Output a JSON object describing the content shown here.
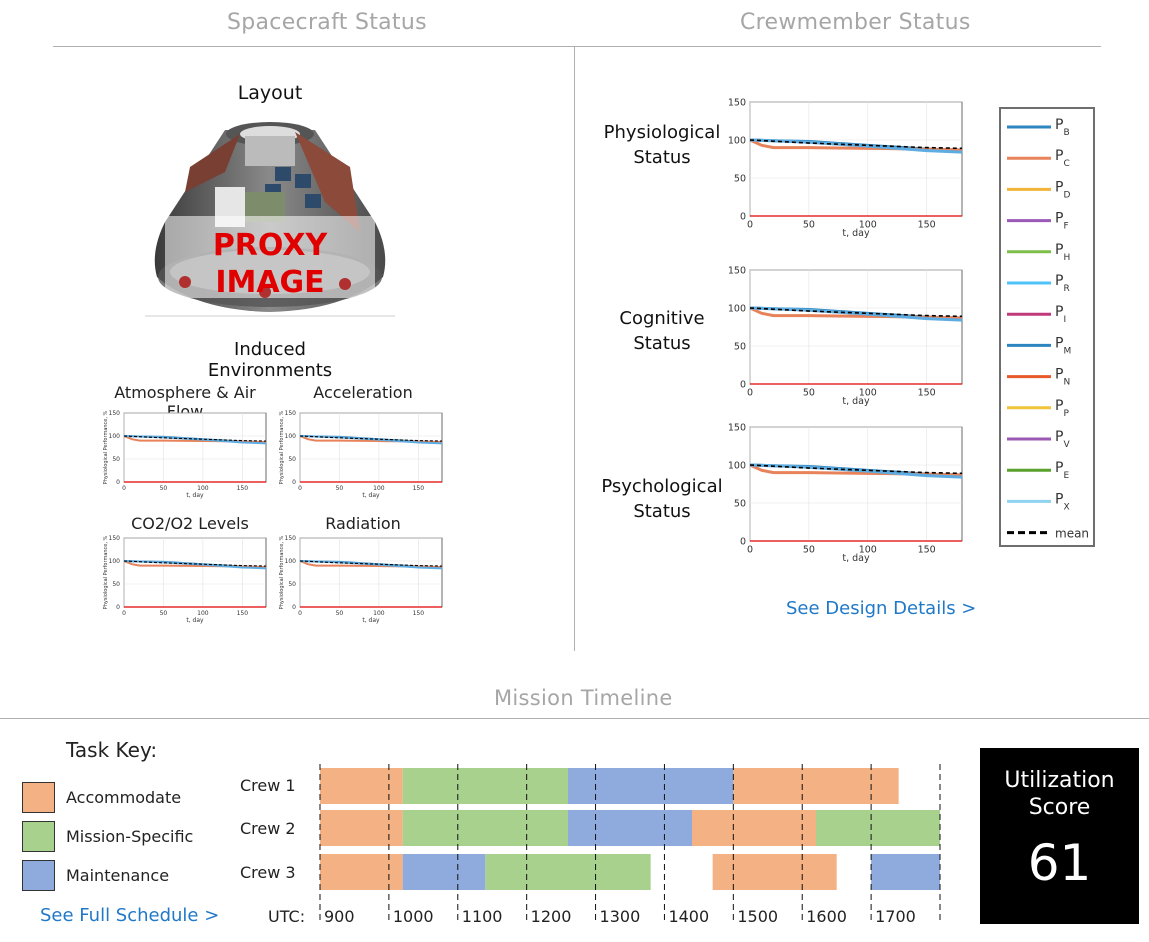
{
  "sections": {
    "spacecraft": "Spacecraft Status",
    "crew": "Crewmember Status",
    "timeline": "Mission Timeline"
  },
  "layout": {
    "title": "Layout",
    "proxy_line1": "PROXY",
    "proxy_line2": "IMAGE"
  },
  "induced": {
    "title": "Induced Environments",
    "panels": [
      {
        "title": "Atmosphere & Air Flow"
      },
      {
        "title": "Acceleration"
      },
      {
        "title": "CO2/O2 Levels"
      },
      {
        "title": "Radiation"
      }
    ],
    "ylabel": "Physiological Performance, %",
    "xlabel": "t, day"
  },
  "crew_status": {
    "labels": [
      {
        "line1": "Physiological",
        "line2": "Status"
      },
      {
        "line1": "Cognitive",
        "line2": "Status"
      },
      {
        "line1": "Psychological",
        "line2": "Status"
      }
    ],
    "xlabel": "t, day",
    "link": "See Design Details  >"
  },
  "legend": [
    {
      "name": "P",
      "sub": "B",
      "color": "#2e86c1"
    },
    {
      "name": "P",
      "sub": "C",
      "color": "#e8825a"
    },
    {
      "name": "P",
      "sub": "D",
      "color": "#f0b43a"
    },
    {
      "name": "P",
      "sub": "F",
      "color": "#9b59b6"
    },
    {
      "name": "P",
      "sub": "H",
      "color": "#7dbf4a"
    },
    {
      "name": "P",
      "sub": "R",
      "color": "#4fc3f7"
    },
    {
      "name": "P",
      "sub": "I",
      "color": "#c0397a"
    },
    {
      "name": "P",
      "sub": "M",
      "color": "#2e86c1"
    },
    {
      "name": "P",
      "sub": "N",
      "color": "#e8582a"
    },
    {
      "name": "P",
      "sub": "P",
      "color": "#f0c43a"
    },
    {
      "name": "P",
      "sub": "V",
      "color": "#9b59b6"
    },
    {
      "name": "P",
      "sub": "E",
      "color": "#5aa02c"
    },
    {
      "name": "P",
      "sub": "X",
      "color": "#8fd3f0"
    },
    {
      "name": "mean",
      "sub": "",
      "color": "#000000"
    }
  ],
  "chart_data": [
    {
      "type": "line",
      "title": "",
      "xlabel": "t, day",
      "ylabel": "",
      "xlim": [
        0,
        180
      ],
      "ylim": [
        0,
        150
      ],
      "xticks": [
        0,
        50,
        100,
        150
      ],
      "yticks": [
        0,
        50,
        100,
        150
      ],
      "series": [
        {
          "name": "P_B",
          "x": [
            0,
            20,
            50,
            100,
            150,
            180
          ],
          "values": [
            100,
            99,
            98,
            93,
            88,
            86
          ]
        },
        {
          "name": "P_C",
          "x": [
            0,
            10,
            20,
            50,
            100,
            150,
            180
          ],
          "values": [
            100,
            93,
            90,
            90,
            89,
            88,
            87
          ]
        },
        {
          "name": "P_M",
          "x": [
            0,
            20,
            50,
            100,
            150,
            180
          ],
          "values": [
            100,
            99,
            97,
            92,
            86,
            84
          ]
        },
        {
          "name": "mean",
          "x": [
            0,
            50,
            100,
            150,
            180
          ],
          "values": [
            100,
            96,
            93,
            90,
            89
          ]
        },
        {
          "name": "P_N",
          "x": [
            0,
            180
          ],
          "values": [
            0,
            0
          ]
        }
      ]
    }
  ],
  "timeline": {
    "key_title": "Task Key:",
    "key": [
      {
        "label": "Accommodate",
        "color": "#f4b183"
      },
      {
        "label": "Mission-Specific",
        "color": "#a9d18e"
      },
      {
        "label": "Maintenance",
        "color": "#8faadc"
      }
    ],
    "link": "See Full Schedule  >",
    "utc_label": "UTC:",
    "utc_ticks": [
      "900",
      "1000",
      "1100",
      "1200",
      "1300",
      "1400",
      "1500",
      "1600",
      "1700"
    ],
    "crews": [
      {
        "name": "Crew 1",
        "tasks": [
          {
            "type": 0,
            "start": 900,
            "end": 1020
          },
          {
            "type": 1,
            "start": 1020,
            "end": 1260
          },
          {
            "type": 2,
            "start": 1260,
            "end": 1500
          },
          {
            "type": 0,
            "start": 1500,
            "end": 1740
          }
        ]
      },
      {
        "name": "Crew 2",
        "tasks": [
          {
            "type": 0,
            "start": 900,
            "end": 1020
          },
          {
            "type": 1,
            "start": 1020,
            "end": 1260
          },
          {
            "type": 2,
            "start": 1260,
            "end": 1440
          },
          {
            "type": 0,
            "start": 1440,
            "end": 1620
          },
          {
            "type": 1,
            "start": 1620,
            "end": 1800
          }
        ]
      },
      {
        "name": "Crew 3",
        "tasks": [
          {
            "type": 0,
            "start": 900,
            "end": 1020
          },
          {
            "type": 2,
            "start": 1020,
            "end": 1140
          },
          {
            "type": 1,
            "start": 1140,
            "end": 1380
          },
          {
            "type": 0,
            "start": 1470,
            "end": 1650
          },
          {
            "type": 2,
            "start": 1700,
            "end": 1800
          }
        ]
      }
    ]
  },
  "score": {
    "label1": "Utilization",
    "label2": "Score",
    "value": "61"
  }
}
